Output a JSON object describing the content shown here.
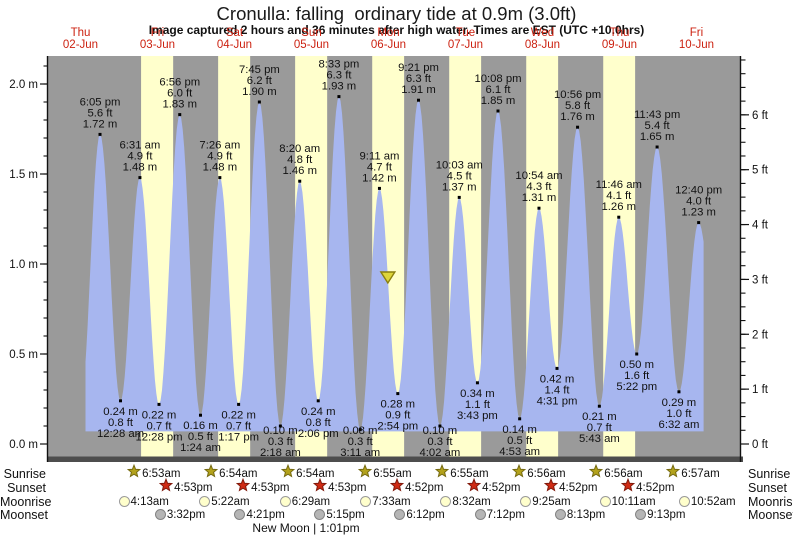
{
  "header": {
    "title": "Cronulla: falling  ordinary tide at 0.9m (3.0ft)",
    "subtitle": "Image captured 2 hours and 36 minutes after high water. Times are EST (UTC +10.0hrs)"
  },
  "x_axis_days": [
    {
      "name": "Thu",
      "date": "02-Jun"
    },
    {
      "name": "Fri",
      "date": "03-Jun"
    },
    {
      "name": "Sat",
      "date": "04-Jun"
    },
    {
      "name": "Sun",
      "date": "05-Jun"
    },
    {
      "name": "Mon",
      "date": "06-Jun"
    },
    {
      "name": "Tue",
      "date": "07-Jun"
    },
    {
      "name": "Wed",
      "date": "08-Jun"
    },
    {
      "name": "Thu",
      "date": "09-Jun"
    },
    {
      "name": "Fri",
      "date": "10-Jun"
    }
  ],
  "chart_data": {
    "type": "area",
    "title": "Cronulla tide height",
    "ylabel_left": "metres",
    "ylabel_right": "feet",
    "ylim_m": [
      0.0,
      2.1
    ],
    "left_ticks": [
      {
        "value": 0.0,
        "label": "0.0 m"
      },
      {
        "value": 0.5,
        "label": "0.5 m"
      },
      {
        "value": 1.0,
        "label": "1.0 m"
      },
      {
        "value": 1.5,
        "label": "1.5 m"
      },
      {
        "value": 2.0,
        "label": "2.0 m"
      }
    ],
    "right_ticks": [
      {
        "value": 0,
        "label": "0 ft"
      },
      {
        "value": 1,
        "label": "1 ft"
      },
      {
        "value": 2,
        "label": "2 ft"
      },
      {
        "value": 3,
        "label": "3 ft"
      },
      {
        "value": 4,
        "label": "4 ft"
      },
      {
        "value": 5,
        "label": "5 ft"
      },
      {
        "value": 6,
        "label": "6 ft"
      }
    ],
    "tide_events": [
      {
        "type": "high",
        "day": 0,
        "time": "6:05 pm",
        "hour": 18.08,
        "meters": 1.72,
        "feet": 5.6
      },
      {
        "type": "low",
        "day": 1,
        "time": "12:28 am",
        "hour": 0.47,
        "meters": 0.24,
        "feet": 0.8
      },
      {
        "type": "high",
        "day": 1,
        "time": "6:31 am",
        "hour": 6.52,
        "meters": 1.48,
        "feet": 4.9
      },
      {
        "type": "low",
        "day": 1,
        "time": "12:28 pm",
        "hour": 12.47,
        "meters": 0.22,
        "feet": 0.7
      },
      {
        "type": "high",
        "day": 1,
        "time": "6:56 pm",
        "hour": 18.93,
        "meters": 1.83,
        "feet": 6.0
      },
      {
        "type": "low",
        "day": 2,
        "time": "1:24 am",
        "hour": 1.4,
        "meters": 0.16,
        "feet": 0.5
      },
      {
        "type": "high",
        "day": 2,
        "time": "7:26 am",
        "hour": 7.43,
        "meters": 1.48,
        "feet": 4.9
      },
      {
        "type": "low",
        "day": 2,
        "time": "1:17 pm",
        "hour": 13.28,
        "meters": 0.22,
        "feet": 0.7
      },
      {
        "type": "high",
        "day": 2,
        "time": "7:45 pm",
        "hour": 19.75,
        "meters": 1.9,
        "feet": 6.2
      },
      {
        "type": "low",
        "day": 3,
        "time": "2:18 am",
        "hour": 2.3,
        "meters": 0.1,
        "feet": 0.3
      },
      {
        "type": "high",
        "day": 3,
        "time": "8:20 am",
        "hour": 8.33,
        "meters": 1.46,
        "feet": 4.8
      },
      {
        "type": "low",
        "day": 3,
        "time": "2:06 pm",
        "hour": 14.1,
        "meters": 0.24,
        "feet": 0.8
      },
      {
        "type": "high",
        "day": 3,
        "time": "8:33 pm",
        "hour": 20.55,
        "meters": 1.93,
        "feet": 6.3
      },
      {
        "type": "low",
        "day": 4,
        "time": "3:11 am",
        "hour": 3.18,
        "meters": 0.08,
        "feet": 0.3
      },
      {
        "type": "high",
        "day": 4,
        "time": "9:11 am",
        "hour": 9.18,
        "meters": 1.42,
        "feet": 4.7
      },
      {
        "type": "low",
        "day": 4,
        "time": "2:54 pm",
        "hour": 14.9,
        "meters": 0.28,
        "feet": 0.9
      },
      {
        "type": "high",
        "day": 4,
        "time": "9:21 pm",
        "hour": 21.35,
        "meters": 1.91,
        "feet": 6.3
      },
      {
        "type": "low",
        "day": 5,
        "time": "4:02 am",
        "hour": 4.03,
        "meters": 0.1,
        "feet": 0.3
      },
      {
        "type": "high",
        "day": 5,
        "time": "10:03 am",
        "hour": 10.05,
        "meters": 1.37,
        "feet": 4.5
      },
      {
        "type": "low",
        "day": 5,
        "time": "3:43 pm",
        "hour": 15.72,
        "meters": 0.34,
        "feet": 1.1
      },
      {
        "type": "high",
        "day": 5,
        "time": "10:08 pm",
        "hour": 22.13,
        "meters": 1.85,
        "feet": 6.1
      },
      {
        "type": "low",
        "day": 6,
        "time": "4:53 am",
        "hour": 4.88,
        "meters": 0.14,
        "feet": 0.5
      },
      {
        "type": "high",
        "day": 6,
        "time": "10:54 am",
        "hour": 10.9,
        "meters": 1.31,
        "feet": 4.3
      },
      {
        "type": "low",
        "day": 6,
        "time": "4:31 pm",
        "hour": 16.52,
        "meters": 0.42,
        "feet": 1.4
      },
      {
        "type": "high",
        "day": 6,
        "time": "10:56 pm",
        "hour": 22.93,
        "meters": 1.76,
        "feet": 5.8
      },
      {
        "type": "low",
        "day": 7,
        "time": "5:43 am",
        "hour": 5.72,
        "meters": 0.21,
        "feet": 0.7
      },
      {
        "type": "high",
        "day": 7,
        "time": "11:46 am",
        "hour": 11.77,
        "meters": 1.26,
        "feet": 4.1
      },
      {
        "type": "low",
        "day": 7,
        "time": "5:22 pm",
        "hour": 17.37,
        "meters": 0.5,
        "feet": 1.6
      },
      {
        "type": "high",
        "day": 7,
        "time": "11:43 pm",
        "hour": 23.72,
        "meters": 1.65,
        "feet": 5.4
      },
      {
        "type": "low",
        "day": 8,
        "time": "6:32 am",
        "hour": 6.53,
        "meters": 0.29,
        "feet": 1.0
      },
      {
        "type": "high",
        "day": 8,
        "time": "12:40 pm",
        "hour": 12.67,
        "meters": 1.23,
        "feet": 4.0
      }
    ],
    "capture_marker": {
      "day": 4,
      "hour": 11.8,
      "meters": 0.9
    },
    "colors": {
      "day_band": "#ffffcc",
      "night_band": "#9a9a9a",
      "tide_fill": "#a7b6ef",
      "date_label_red": "#cc2211",
      "axis_dark": "#4d4d4d",
      "sunrise_star": "#b3a21b",
      "sunset_star": "#cf2b14",
      "moonrise_circle": "#ffffcc",
      "moonset_circle": "#b5b5b5",
      "capture_triangle": "#ddd53a"
    }
  },
  "almanac": {
    "rows": [
      {
        "id": "sunrise",
        "label": "Sunrise",
        "icon": "sunrise-star",
        "entries": [
          {
            "day": 1,
            "time": "6:53am",
            "hour": 6.88
          },
          {
            "day": 2,
            "time": "6:54am",
            "hour": 6.9
          },
          {
            "day": 3,
            "time": "6:54am",
            "hour": 6.9
          },
          {
            "day": 4,
            "time": "6:55am",
            "hour": 6.92
          },
          {
            "day": 5,
            "time": "6:55am",
            "hour": 6.92
          },
          {
            "day": 6,
            "time": "6:56am",
            "hour": 6.93
          },
          {
            "day": 7,
            "time": "6:56am",
            "hour": 6.93
          },
          {
            "day": 8,
            "time": "6:57am",
            "hour": 6.95
          }
        ]
      },
      {
        "id": "sunset",
        "label": "Sunset",
        "icon": "sunset-star",
        "entries": [
          {
            "day": 1,
            "time": "4:53pm",
            "hour": 16.88
          },
          {
            "day": 2,
            "time": "4:53pm",
            "hour": 16.88
          },
          {
            "day": 3,
            "time": "4:53pm",
            "hour": 16.88
          },
          {
            "day": 4,
            "time": "4:52pm",
            "hour": 16.87
          },
          {
            "day": 5,
            "time": "4:52pm",
            "hour": 16.87
          },
          {
            "day": 6,
            "time": "4:52pm",
            "hour": 16.87
          },
          {
            "day": 7,
            "time": "4:52pm",
            "hour": 16.87
          }
        ]
      },
      {
        "id": "moonrise",
        "label": "Moonrise",
        "icon": "moonrise-circle",
        "entries": [
          {
            "day": 1,
            "time": "4:13am",
            "hour": 4.22
          },
          {
            "day": 2,
            "time": "5:22am",
            "hour": 5.37
          },
          {
            "day": 3,
            "time": "6:29am",
            "hour": 6.48
          },
          {
            "day": 4,
            "time": "7:33am",
            "hour": 7.55
          },
          {
            "day": 5,
            "time": "8:32am",
            "hour": 8.53
          },
          {
            "day": 6,
            "time": "9:25am",
            "hour": 9.42
          },
          {
            "day": 7,
            "time": "10:11am",
            "hour": 10.18
          },
          {
            "day": 8,
            "time": "10:52am",
            "hour": 10.87
          }
        ]
      },
      {
        "id": "moonset",
        "label": "Moonset",
        "icon": "moonset-circle",
        "entries": [
          {
            "day": 1,
            "time": "3:32pm",
            "hour": 15.53
          },
          {
            "day": 2,
            "time": "4:21pm",
            "hour": 16.35
          },
          {
            "day": 3,
            "time": "5:15pm",
            "hour": 17.25
          },
          {
            "day": 4,
            "time": "6:12pm",
            "hour": 18.2
          },
          {
            "day": 5,
            "time": "7:12pm",
            "hour": 19.2
          },
          {
            "day": 6,
            "time": "8:13pm",
            "hour": 20.22
          },
          {
            "day": 7,
            "time": "9:13pm",
            "hour": 21.22
          }
        ]
      }
    ],
    "moon_phase": "New Moon | 1:01pm"
  }
}
